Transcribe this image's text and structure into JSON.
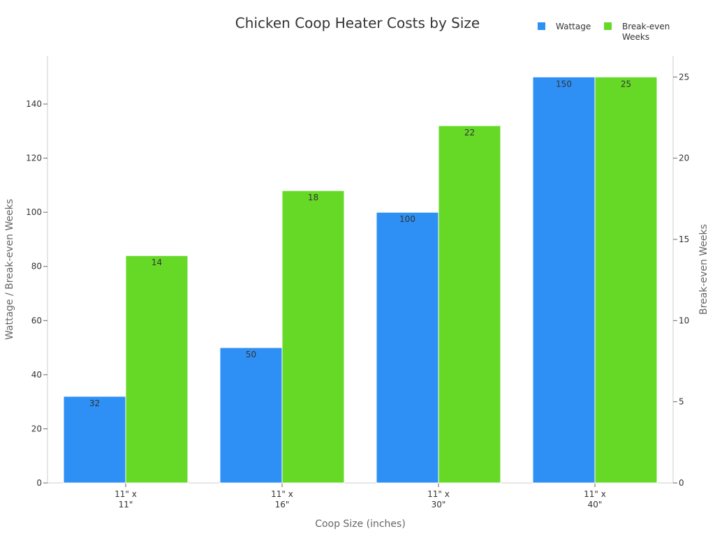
{
  "chart_data": {
    "type": "bar",
    "title": "Chicken Coop Heater Costs by Size",
    "categories": [
      [
        "11\" x",
        "11\""
      ],
      [
        "11\" x",
        "16\""
      ],
      [
        "11\" x",
        "30\""
      ],
      [
        "11\" x",
        "40\""
      ]
    ],
    "series": [
      {
        "name": "Wattage",
        "values": [
          32,
          50,
          100,
          150
        ],
        "color": "#2e90f5",
        "axis": "left"
      },
      {
        "name": "Break-even Weeks",
        "legend_lines": [
          "Break-even",
          "Weeks"
        ],
        "values": [
          14,
          18,
          22,
          25
        ],
        "color": "#66d927",
        "axis": "right"
      }
    ],
    "xlabel": "Coop Size (inches)",
    "ylabel": "Wattage / Break-even Weeks",
    "ylabel_right": "Break-even Weeks",
    "ylim": [
      0,
      156
    ],
    "ylim_right": [
      0,
      26
    ],
    "yticks": [
      0,
      20,
      40,
      60,
      80,
      100,
      120,
      140
    ],
    "yticks_right": [
      0,
      5,
      10,
      15,
      20,
      25
    ],
    "grid": false,
    "legend_position": "top-right"
  }
}
